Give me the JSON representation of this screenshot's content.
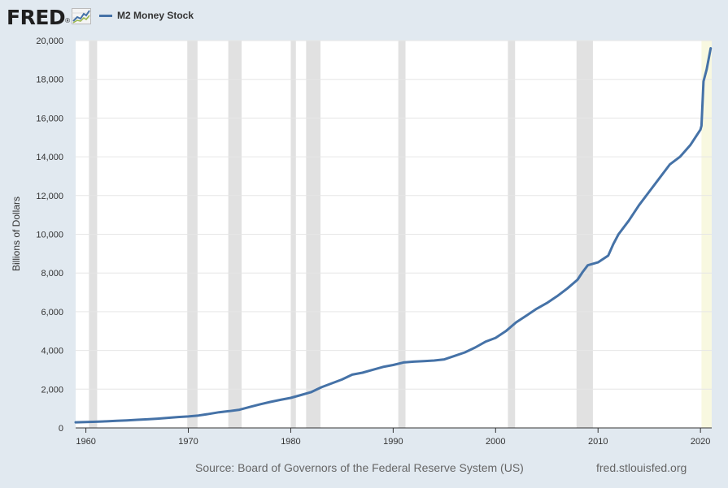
{
  "header": {
    "logo_text": "FRED",
    "logo_mark": "®",
    "legend_label": "M2 Money Stock"
  },
  "footer": {
    "source": "Source: Board of Governors of the Federal Reserve System (US)",
    "site": "fred.stlouisfed.org"
  },
  "colors": {
    "series": "#4572a7",
    "recession": "#e1e1e1",
    "highlight": "#f8f8e0",
    "background": "#e1e9f0",
    "plot": "#ffffff"
  },
  "chart_data": {
    "type": "line",
    "title": "",
    "xlabel": "",
    "ylabel": "Billions of Dollars",
    "xlim": [
      1959.0,
      2021.1
    ],
    "ylim": [
      0,
      20000
    ],
    "yticks": [
      0,
      2000,
      4000,
      6000,
      8000,
      10000,
      12000,
      14000,
      16000,
      18000,
      20000
    ],
    "ytick_labels": [
      "0",
      "2,000",
      "4,000",
      "6,000",
      "8,000",
      "10,000",
      "12,000",
      "14,000",
      "16,000",
      "18,000",
      "20,000"
    ],
    "xticks": [
      1960,
      1970,
      1980,
      1990,
      2000,
      2010,
      2020
    ],
    "xtick_labels": [
      "1960",
      "1970",
      "1980",
      "1990",
      "2000",
      "2010",
      "2020"
    ],
    "grid": "horizontal",
    "legend_position": "top-left",
    "recessions": [
      [
        1960.3,
        1961.1
      ],
      [
        1969.9,
        1970.9
      ],
      [
        1973.9,
        1975.2
      ],
      [
        1980.0,
        1980.5
      ],
      [
        1981.5,
        1982.9
      ],
      [
        1990.5,
        1991.2
      ],
      [
        2001.2,
        2001.9
      ],
      [
        2007.9,
        2009.5
      ],
      [
        2020.1,
        2021.1
      ]
    ],
    "series": [
      {
        "name": "M2 Money Stock",
        "x": [
          1959.0,
          1960.0,
          1961.0,
          1962.0,
          1963.0,
          1964.0,
          1965.0,
          1966.0,
          1967.0,
          1968.0,
          1969.0,
          1970.0,
          1971.0,
          1972.0,
          1973.0,
          1974.0,
          1975.0,
          1976.0,
          1977.0,
          1978.0,
          1979.0,
          1980.0,
          1981.0,
          1982.0,
          1983.0,
          1984.0,
          1985.0,
          1986.0,
          1987.0,
          1988.0,
          1989.0,
          1990.0,
          1991.0,
          1992.0,
          1993.0,
          1994.0,
          1995.0,
          1996.0,
          1997.0,
          1998.0,
          1999.0,
          2000.0,
          2001.0,
          2002.0,
          2003.0,
          2004.0,
          2005.0,
          2006.0,
          2007.0,
          2008.0,
          2008.5,
          2009.0,
          2010.0,
          2011.0,
          2011.5,
          2012.0,
          2013.0,
          2014.0,
          2015.0,
          2016.0,
          2017.0,
          2018.0,
          2019.0,
          2020.0,
          2020.1,
          2020.3,
          2020.6,
          2021.0
        ],
        "values": [
          290,
          305,
          320,
          340,
          365,
          390,
          420,
          445,
          480,
          520,
          560,
          590,
          640,
          720,
          810,
          870,
          940,
          1080,
          1220,
          1340,
          1450,
          1550,
          1700,
          1850,
          2100,
          2300,
          2500,
          2750,
          2850,
          3000,
          3150,
          3250,
          3380,
          3420,
          3450,
          3480,
          3540,
          3720,
          3900,
          4150,
          4450,
          4650,
          5000,
          5450,
          5800,
          6150,
          6450,
          6800,
          7200,
          7650,
          8050,
          8400,
          8550,
          8900,
          9500,
          10000,
          10700,
          11500,
          12200,
          12900,
          13600,
          14000,
          14600,
          15400,
          15600,
          17900,
          18500,
          19600
        ]
      }
    ]
  }
}
